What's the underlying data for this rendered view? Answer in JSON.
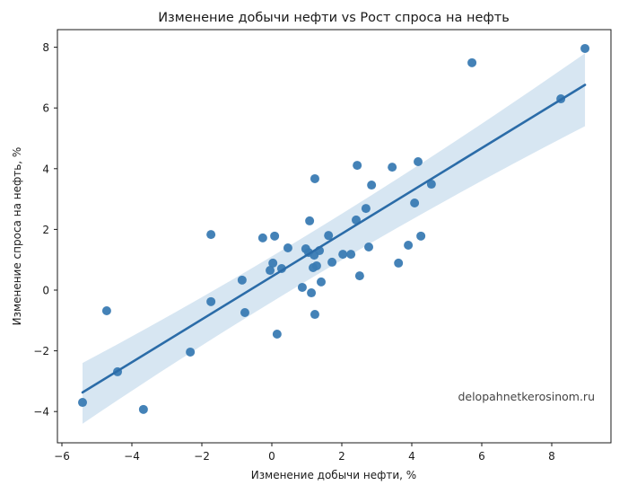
{
  "chart_data": {
    "type": "scatter",
    "title": "Изменение добычи нефти vs Рост спроса на нефть",
    "xlabel": "Изменение добычи нефти, %",
    "ylabel": "Изменение спроса на нефть, %",
    "xlim": [
      -6.2,
      9.6
    ],
    "ylim": [
      -5.05,
      8.6
    ],
    "xticks": [
      -6,
      -4,
      -2,
      0,
      2,
      4,
      6,
      8
    ],
    "yticks": [
      -4,
      -2,
      0,
      2,
      4,
      6,
      8
    ],
    "xtick_labels": [
      "−6",
      "−4",
      "−2",
      "0",
      "2",
      "4",
      "6",
      "8"
    ],
    "ytick_labels": [
      "−4",
      "−2",
      "0",
      "2",
      "4",
      "6",
      "8"
    ],
    "grid": false,
    "legend": null,
    "annotation": "delopahnetkerosinom.ru",
    "point_color": "#3a7bb3",
    "line_color": "#2b6ca8",
    "band_color": "#c6dbed",
    "points": [
      {
        "x": -5.41,
        "y": -3.7
      },
      {
        "x": -4.72,
        "y": -0.68
      },
      {
        "x": -4.41,
        "y": -2.69
      },
      {
        "x": -3.67,
        "y": -3.93
      },
      {
        "x": -2.33,
        "y": -2.04
      },
      {
        "x": -1.74,
        "y": -0.38
      },
      {
        "x": -1.74,
        "y": 1.83
      },
      {
        "x": -0.85,
        "y": 0.33
      },
      {
        "x": -0.77,
        "y": -0.74
      },
      {
        "x": -0.26,
        "y": 1.72
      },
      {
        "x": -0.05,
        "y": 0.65
      },
      {
        "x": 0.03,
        "y": 0.89
      },
      {
        "x": 0.08,
        "y": 1.78
      },
      {
        "x": 0.15,
        "y": -1.45
      },
      {
        "x": 0.28,
        "y": 0.71
      },
      {
        "x": 0.46,
        "y": 1.39
      },
      {
        "x": 0.87,
        "y": 0.09
      },
      {
        "x": 0.97,
        "y": 1.36
      },
      {
        "x": 1.05,
        "y": 1.24
      },
      {
        "x": 1.08,
        "y": 2.28
      },
      {
        "x": 1.13,
        "y": -0.09
      },
      {
        "x": 1.18,
        "y": 0.74
      },
      {
        "x": 1.21,
        "y": 1.15
      },
      {
        "x": 1.23,
        "y": -0.8
      },
      {
        "x": 1.23,
        "y": 3.67
      },
      {
        "x": 1.28,
        "y": 0.8
      },
      {
        "x": 1.36,
        "y": 1.3
      },
      {
        "x": 1.41,
        "y": 0.27
      },
      {
        "x": 1.62,
        "y": 1.8
      },
      {
        "x": 1.72,
        "y": 0.92
      },
      {
        "x": 2.03,
        "y": 1.18
      },
      {
        "x": 2.26,
        "y": 1.18
      },
      {
        "x": 2.41,
        "y": 2.31
      },
      {
        "x": 2.44,
        "y": 4.11
      },
      {
        "x": 2.51,
        "y": 0.47
      },
      {
        "x": 2.69,
        "y": 2.69
      },
      {
        "x": 2.77,
        "y": 1.42
      },
      {
        "x": 2.85,
        "y": 3.46
      },
      {
        "x": 3.44,
        "y": 4.05
      },
      {
        "x": 3.62,
        "y": 0.89
      },
      {
        "x": 3.9,
        "y": 1.48
      },
      {
        "x": 4.08,
        "y": 2.87
      },
      {
        "x": 4.18,
        "y": 4.23
      },
      {
        "x": 4.26,
        "y": 1.78
      },
      {
        "x": 4.56,
        "y": 3.49
      },
      {
        "x": 5.72,
        "y": 7.49
      },
      {
        "x": 8.26,
        "y": 6.3
      },
      {
        "x": 8.95,
        "y": 7.96
      }
    ],
    "regression": {
      "x": [
        -5.41,
        8.95
      ],
      "y": [
        -3.37,
        6.76
      ],
      "ci_upper": [
        -2.4,
        7.8
      ],
      "ci_lower": [
        -4.4,
        5.4
      ],
      "ci_mid_upper": [
        {
          "x": 1.5,
          "y": 1.75
        }
      ],
      "ci_mid_lower": [
        {
          "x": 1.5,
          "y": 1.05
        }
      ]
    }
  }
}
